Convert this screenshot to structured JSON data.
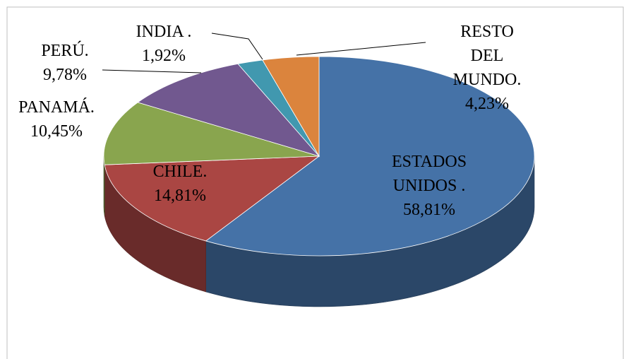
{
  "chart_data": {
    "type": "pie3d",
    "categories": [
      "ESTADOS UNIDOS .",
      "CHILE.",
      "PANAMÁ.",
      "PERÚ.",
      "INDIA .",
      "RESTO DEL MUNDO."
    ],
    "values": [
      58.81,
      14.81,
      10.45,
      9.78,
      1.92,
      4.23
    ],
    "value_labels": [
      "58,81%",
      "14,81%",
      "10,45%",
      "9,78%",
      "1,92%",
      "4,23%"
    ],
    "colors": [
      "#4572a7",
      "#aa4643",
      "#89a54e",
      "#71588f",
      "#4198af",
      "#db843d"
    ]
  }
}
